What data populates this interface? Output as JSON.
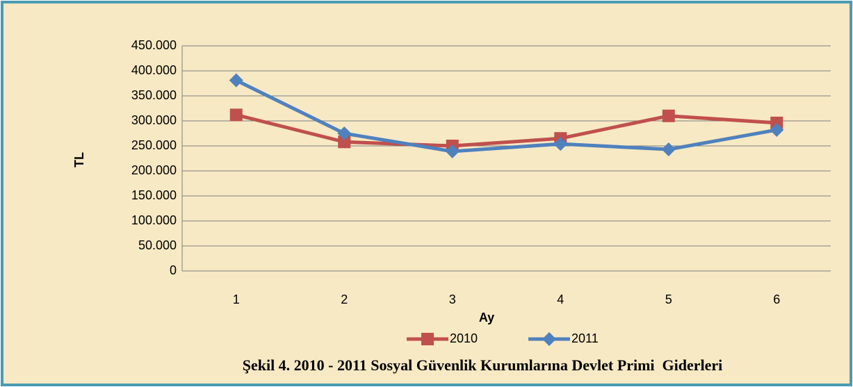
{
  "chart_data": {
    "type": "line",
    "title": "Şekil 4. 2010 - 2011 Sosyal Güvenlik Kurumlarına Devlet Primi  Giderleri",
    "x_label": "Ay",
    "y_label": "TL",
    "categories": [
      "1",
      "2",
      "3",
      "4",
      "5",
      "6"
    ],
    "series": [
      {
        "name": "2010",
        "color": "#c0504d",
        "marker": "square",
        "values": [
          312000,
          258000,
          250000,
          265000,
          310000,
          296000
        ]
      },
      {
        "name": "2011",
        "color": "#4f81bd",
        "marker": "diamond",
        "values": [
          381000,
          275000,
          239000,
          254000,
          243000,
          282000
        ]
      }
    ],
    "ylim": [
      0,
      450000
    ],
    "yticks": [
      0,
      {
        "value": 50000,
        "label": "50.000"
      },
      {
        "value": 100000,
        "label": "100.000"
      },
      {
        "value": 150000,
        "label": "150.000"
      },
      {
        "value": 200000,
        "label": "200.000"
      },
      {
        "value": 250000,
        "label": "250.000"
      },
      {
        "value": 300000,
        "label": "300.000"
      },
      {
        "value": 350000,
        "label": "350.000"
      },
      {
        "value": 400000,
        "label": "400.000"
      },
      {
        "value": 450000,
        "label": "450.000"
      }
    ],
    "grid": true,
    "legend": "bottom"
  }
}
